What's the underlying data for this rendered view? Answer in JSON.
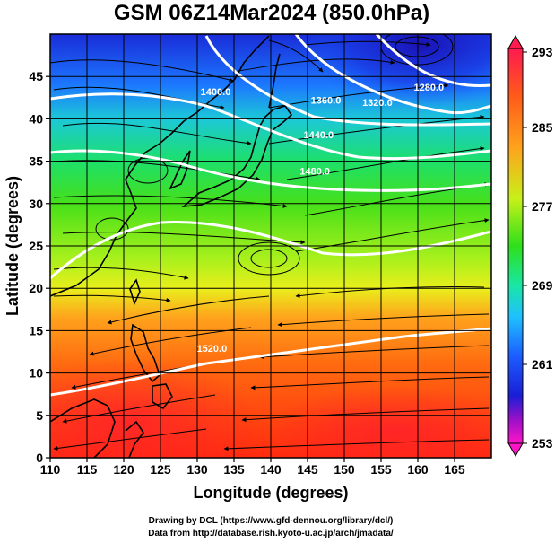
{
  "title": "GSM 06Z14Mar2024 (850.0hPa)",
  "map": {
    "xlabel": "Longitude (degrees)",
    "ylabel": "Latitude  (degrees)",
    "lon_range": [
      110,
      170
    ],
    "lat_range": [
      0,
      50
    ],
    "lon_ticks": [
      "110",
      "115",
      "120",
      "125",
      "130",
      "135",
      "140",
      "145",
      "150",
      "155",
      "160",
      "165"
    ],
    "lat_ticks": [
      "0",
      "5",
      "10",
      "15",
      "20",
      "25",
      "30",
      "35",
      "40",
      "45"
    ],
    "grid": true,
    "grid_spacing_deg": 5,
    "fields": [
      "temperature (shaded)",
      "geopotential height (white contours)",
      "wind (streamlines)"
    ]
  },
  "colorbar": {
    "min": 253,
    "max": 293,
    "labels": [
      "293",
      "285",
      "277",
      "269",
      "261",
      "253"
    ],
    "colors": [
      "#ff0050",
      "#ff4a1a",
      "#ffa21c",
      "#e0f51a",
      "#4ae61a",
      "#19e6a5",
      "#1fc0ff",
      "#1c5cff",
      "#1a1ed6",
      "#9b10c8",
      "#ff14c8"
    ]
  },
  "contours": [
    {
      "label": "1280.0",
      "lon": 161.5,
      "lat": 43.3
    },
    {
      "label": "1320.0",
      "lon": 154.5,
      "lat": 41.5
    },
    {
      "label": "1360.0",
      "lon": 147.5,
      "lat": 41.8
    },
    {
      "label": "1400.0",
      "lon": 132.5,
      "lat": 42.8
    },
    {
      "label": "1440.0",
      "lon": 146.5,
      "lat": 37.7
    },
    {
      "label": "1480.0",
      "lon": 146.0,
      "lat": 33.4
    },
    {
      "label": "1520.0",
      "lon": 132.0,
      "lat": 12.5
    }
  ],
  "credits": {
    "line1": "Drawing by DCL (https://www.gfd-dennou.org/library/dcl/)",
    "line2": "Data from http://database.rish.kyoto-u.ac.jp/arch/jmadata/"
  }
}
